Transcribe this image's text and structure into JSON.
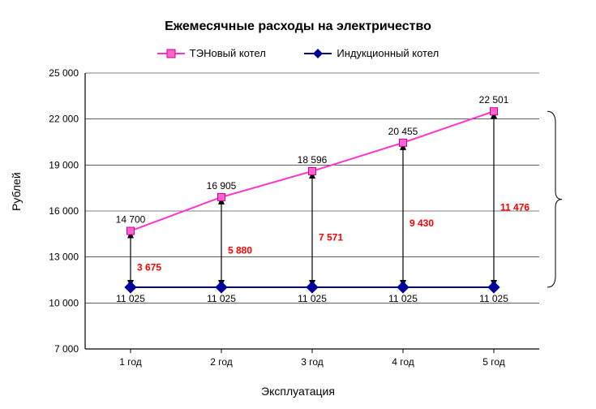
{
  "chart": {
    "type": "line",
    "title": "Ежемесячные расходы на электричество",
    "title_fontsize": 16,
    "title_weight": "bold",
    "xlabel": "Эксплуатация",
    "ylabel": "Рублей",
    "label_fontsize": 14,
    "background_color": "#ffffff",
    "grid_color": "#000000",
    "grid_width": 0.6,
    "axis_line_color": "#000000",
    "ylim": [
      7000,
      25000
    ],
    "ytick_step": 3000,
    "yticks": [
      7000,
      10000,
      13000,
      16000,
      19000,
      22000,
      25000
    ],
    "ytick_labels": [
      "7 000",
      "10 000",
      "13 000",
      "16 000",
      "19 000",
      "22 000",
      "25 000"
    ],
    "tick_fontsize": 12,
    "xticks": [
      "1 год",
      "2 год",
      "3 год",
      "4 год",
      "5 год"
    ],
    "legend": {
      "position": "top",
      "fontsize": 13,
      "items": [
        {
          "label": "ТЭНовый котел",
          "color": "#ff33cc",
          "marker": "square",
          "marker_fill": "#ff66cc",
          "marker_border": "#cc0099"
        },
        {
          "label": "Индукционный котел",
          "color": "#000099",
          "marker": "diamond",
          "marker_fill": "#000099",
          "marker_border": "#000099"
        }
      ]
    },
    "series": [
      {
        "name": "ТЭНовый котел",
        "color": "#ff33cc",
        "line_width": 2,
        "marker": "square",
        "marker_size": 9,
        "marker_fill": "#ff66cc",
        "marker_border": "#cc0099",
        "values": [
          14700,
          16905,
          18596,
          20455,
          22501
        ],
        "data_labels": [
          "14 700",
          "16 905",
          "18 596",
          "20 455",
          "22 501"
        ],
        "data_label_color": "#000000",
        "data_label_fontsize": 12
      },
      {
        "name": "Индукционный котел",
        "color": "#000099",
        "line_width": 2,
        "marker": "diamond",
        "marker_size": 9,
        "marker_fill": "#000099",
        "marker_border": "#000099",
        "values": [
          11025,
          11025,
          11025,
          11025,
          11025
        ],
        "data_labels": [
          "11 025",
          "11 025",
          "11 025",
          "11 025",
          "11 025"
        ],
        "data_label_color": "#000000",
        "data_label_fontsize": 12
      }
    ],
    "difference_arrows": {
      "color": "#000000",
      "width": 1.2,
      "labels": [
        "3 675",
        "5 880",
        "7 571",
        "9 430",
        "11 476"
      ],
      "label_color": "#ff0000",
      "label_fontsize": 12,
      "label_weight": "bold"
    },
    "right_brace": {
      "color": "#000000",
      "width": 1,
      "spans": [
        11025,
        22501
      ]
    }
  }
}
